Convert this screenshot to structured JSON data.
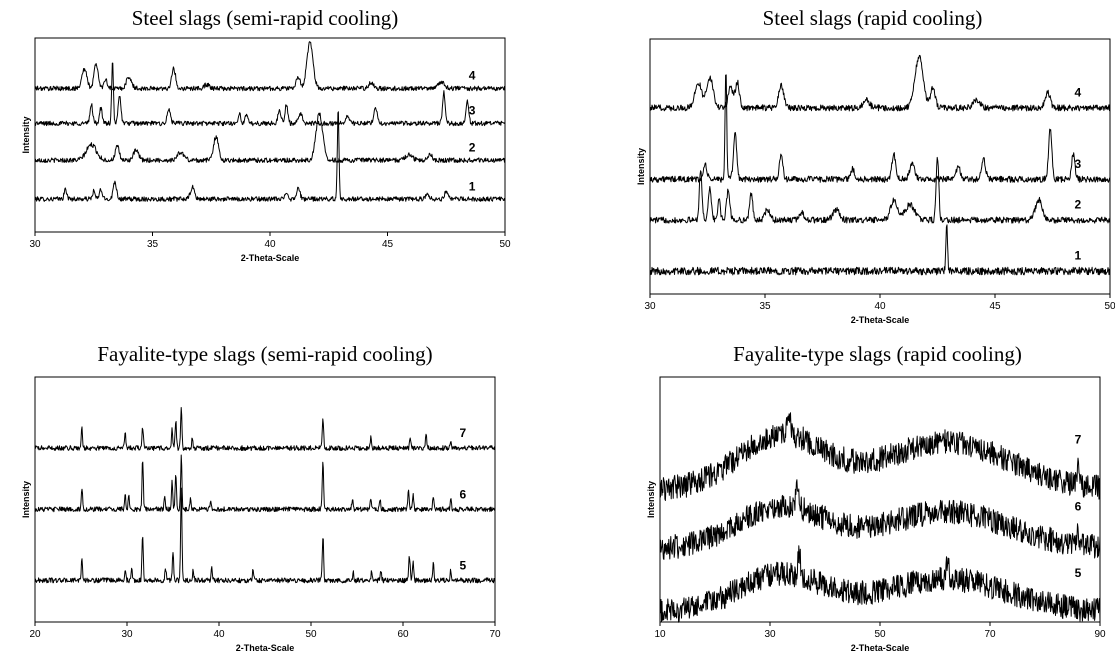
{
  "panels": [
    {
      "title": "Steel slags (semi-rapid cooling)",
      "xlabel": "2-Theta-Scale",
      "ylabel": "Intensity",
      "xlim": [
        30,
        50
      ],
      "xticks": [
        "30",
        "35",
        "40",
        "45",
        "50"
      ]
    },
    {
      "title": "Steel slags (rapid cooling)",
      "xlabel": "2-Theta-Scale",
      "ylabel": "Intensity",
      "xlim": [
        30,
        50
      ],
      "xticks": [
        "30",
        "35",
        "40",
        "45",
        "50"
      ]
    },
    {
      "title": "Fayalite-type slags (semi-rapid cooling)",
      "xlabel": "2-Theta-Scale",
      "ylabel": "Intensity",
      "xlim": [
        20,
        70
      ],
      "xticks": [
        "20",
        "30",
        "40",
        "50",
        "60",
        "70"
      ]
    },
    {
      "title": "Fayalite-type slags (rapid cooling)",
      "xlabel": "2-Theta-Scale",
      "ylabel": "Intensity",
      "xlim": [
        10,
        90
      ],
      "xticks": [
        "10",
        "30",
        "50",
        "70",
        "90"
      ]
    }
  ],
  "chart_data": [
    {
      "type": "line",
      "title": "Steel slags (semi-rapid cooling)",
      "xlabel": "2-Theta-Scale",
      "ylabel": "Intensity",
      "xlim": [
        30,
        50
      ],
      "ylim": [
        0,
        1
      ],
      "grid": false,
      "legend": "none",
      "series": [
        {
          "name": "1",
          "baseline": 0.17,
          "amplitude": 0.0,
          "noise": 0.012,
          "peaks": [
            [
              31.3,
              0.05,
              0.08
            ],
            [
              32.5,
              0.04,
              0.08
            ],
            [
              32.8,
              0.05,
              0.08
            ],
            [
              33.4,
              0.09,
              0.1
            ],
            [
              36.7,
              0.06,
              0.12
            ],
            [
              40.7,
              0.04,
              0.08
            ],
            [
              41.2,
              0.06,
              0.1
            ],
            [
              42.9,
              0.46,
              0.05
            ],
            [
              46.7,
              0.03,
              0.1
            ],
            [
              47.5,
              0.04,
              0.1
            ]
          ]
        },
        {
          "name": "2",
          "baseline": 0.37,
          "amplitude": 0.0,
          "noise": 0.012,
          "peaks": [
            [
              32.4,
              0.08,
              0.3
            ],
            [
              33.5,
              0.07,
              0.12
            ],
            [
              34.3,
              0.05,
              0.15
            ],
            [
              36.2,
              0.04,
              0.2
            ],
            [
              37.7,
              0.12,
              0.15
            ],
            [
              42.1,
              0.24,
              0.2
            ],
            [
              45.9,
              0.03,
              0.2
            ],
            [
              46.8,
              0.03,
              0.15
            ]
          ]
        },
        {
          "name": "3",
          "baseline": 0.56,
          "amplitude": 0.0,
          "noise": 0.012,
          "peaks": [
            [
              32.4,
              0.1,
              0.08
            ],
            [
              32.8,
              0.08,
              0.08
            ],
            [
              33.3,
              0.32,
              0.05
            ],
            [
              33.6,
              0.15,
              0.08
            ],
            [
              35.7,
              0.07,
              0.1
            ],
            [
              38.7,
              0.05,
              0.08
            ],
            [
              39.0,
              0.04,
              0.08
            ],
            [
              40.4,
              0.06,
              0.1
            ],
            [
              40.7,
              0.1,
              0.08
            ],
            [
              41.3,
              0.05,
              0.12
            ],
            [
              43.3,
              0.04,
              0.1
            ],
            [
              44.5,
              0.08,
              0.1
            ],
            [
              47.4,
              0.16,
              0.08
            ],
            [
              48.4,
              0.12,
              0.08
            ]
          ]
        },
        {
          "name": "4",
          "baseline": 0.74,
          "amplitude": 0.0,
          "noise": 0.012,
          "peaks": [
            [
              32.1,
              0.1,
              0.15
            ],
            [
              32.6,
              0.13,
              0.12
            ],
            [
              33.0,
              0.05,
              0.1
            ],
            [
              34.0,
              0.06,
              0.15
            ],
            [
              35.9,
              0.1,
              0.12
            ],
            [
              37.3,
              0.02,
              0.15
            ],
            [
              41.2,
              0.06,
              0.12
            ],
            [
              41.7,
              0.24,
              0.18
            ],
            [
              44.3,
              0.03,
              0.15
            ],
            [
              47.3,
              0.03,
              0.2
            ]
          ]
        }
      ]
    },
    {
      "type": "line",
      "title": "Steel slags (rapid cooling)",
      "xlabel": "2-Theta-Scale",
      "ylabel": "Intensity",
      "xlim": [
        30,
        50
      ],
      "ylim": [
        0,
        1
      ],
      "grid": false,
      "legend": "none",
      "series": [
        {
          "name": "1",
          "baseline": 0.09,
          "amplitude": 0.0,
          "noise": 0.015,
          "peaks": [
            [
              42.9,
              0.18,
              0.05
            ]
          ]
        },
        {
          "name": "2",
          "baseline": 0.29,
          "amplitude": 0.0,
          "noise": 0.012,
          "peaks": [
            [
              32.2,
              0.2,
              0.08
            ],
            [
              32.6,
              0.12,
              0.1
            ],
            [
              33.0,
              0.08,
              0.08
            ],
            [
              33.4,
              0.12,
              0.1
            ],
            [
              34.4,
              0.1,
              0.1
            ],
            [
              35.1,
              0.04,
              0.15
            ],
            [
              36.6,
              0.03,
              0.15
            ],
            [
              38.1,
              0.04,
              0.2
            ],
            [
              40.6,
              0.08,
              0.2
            ],
            [
              41.3,
              0.06,
              0.3
            ],
            [
              42.5,
              0.24,
              0.08
            ],
            [
              46.9,
              0.08,
              0.2
            ]
          ]
        },
        {
          "name": "3",
          "baseline": 0.45,
          "amplitude": 0.0,
          "noise": 0.012,
          "peaks": [
            [
              32.4,
              0.06,
              0.1
            ],
            [
              33.3,
              0.43,
              0.05
            ],
            [
              33.7,
              0.18,
              0.1
            ],
            [
              35.7,
              0.1,
              0.1
            ],
            [
              38.8,
              0.04,
              0.12
            ],
            [
              40.6,
              0.1,
              0.12
            ],
            [
              41.4,
              0.06,
              0.15
            ],
            [
              43.4,
              0.05,
              0.12
            ],
            [
              44.5,
              0.08,
              0.12
            ],
            [
              47.4,
              0.2,
              0.1
            ],
            [
              48.4,
              0.1,
              0.1
            ]
          ]
        },
        {
          "name": "4",
          "baseline": 0.73,
          "amplitude": 0.0,
          "noise": 0.012,
          "peaks": [
            [
              32.1,
              0.1,
              0.2
            ],
            [
              32.6,
              0.12,
              0.2
            ],
            [
              33.5,
              0.08,
              0.15
            ],
            [
              33.8,
              0.1,
              0.12
            ],
            [
              35.7,
              0.09,
              0.15
            ],
            [
              39.4,
              0.03,
              0.2
            ],
            [
              41.7,
              0.2,
              0.25
            ],
            [
              42.3,
              0.08,
              0.15
            ],
            [
              44.2,
              0.03,
              0.2
            ],
            [
              47.3,
              0.06,
              0.15
            ]
          ]
        }
      ]
    },
    {
      "type": "line",
      "title": "Fayalite-type slags (semi-rapid cooling)",
      "xlabel": "2-Theta-Scale",
      "ylabel": "Intensity",
      "xlim": [
        20,
        70
      ],
      "ylim": [
        0,
        1
      ],
      "grid": false,
      "legend": "none",
      "series": [
        {
          "name": "5",
          "baseline": 0.17,
          "amplitude": 0.0,
          "noise": 0.01,
          "peaks": [
            [
              25.1,
              0.09,
              0.1
            ],
            [
              29.8,
              0.04,
              0.1
            ],
            [
              30.5,
              0.05,
              0.1
            ],
            [
              31.7,
              0.19,
              0.1
            ],
            [
              34.2,
              0.05,
              0.1
            ],
            [
              35.0,
              0.12,
              0.1
            ],
            [
              35.9,
              0.38,
              0.1
            ],
            [
              37.2,
              0.04,
              0.1
            ],
            [
              39.2,
              0.05,
              0.1
            ],
            [
              43.7,
              0.04,
              0.1
            ],
            [
              51.3,
              0.18,
              0.1
            ],
            [
              54.6,
              0.03,
              0.1
            ],
            [
              56.6,
              0.04,
              0.1
            ],
            [
              57.6,
              0.04,
              0.1
            ],
            [
              60.7,
              0.1,
              0.1
            ],
            [
              61.1,
              0.07,
              0.1
            ],
            [
              63.3,
              0.07,
              0.1
            ],
            [
              65.2,
              0.04,
              0.1
            ]
          ]
        },
        {
          "name": "6",
          "baseline": 0.46,
          "amplitude": 0.0,
          "noise": 0.01,
          "peaks": [
            [
              25.1,
              0.09,
              0.1
            ],
            [
              29.8,
              0.06,
              0.1
            ],
            [
              30.2,
              0.05,
              0.1
            ],
            [
              31.7,
              0.2,
              0.1
            ],
            [
              34.1,
              0.05,
              0.1
            ],
            [
              34.9,
              0.11,
              0.1
            ],
            [
              35.3,
              0.14,
              0.1
            ],
            [
              35.9,
              0.22,
              0.1
            ],
            [
              36.9,
              0.05,
              0.1
            ],
            [
              39.1,
              0.04,
              0.1
            ],
            [
              51.3,
              0.2,
              0.1
            ],
            [
              54.5,
              0.04,
              0.1
            ],
            [
              56.5,
              0.05,
              0.1
            ],
            [
              57.5,
              0.04,
              0.1
            ],
            [
              60.6,
              0.08,
              0.1
            ],
            [
              61.1,
              0.06,
              0.1
            ],
            [
              63.3,
              0.05,
              0.1
            ],
            [
              65.2,
              0.04,
              0.1
            ]
          ]
        },
        {
          "name": "7",
          "baseline": 0.71,
          "amplitude": 0.0,
          "noise": 0.01,
          "peaks": [
            [
              25.1,
              0.08,
              0.1
            ],
            [
              29.8,
              0.06,
              0.1
            ],
            [
              31.7,
              0.09,
              0.1
            ],
            [
              34.9,
              0.08,
              0.1
            ],
            [
              35.3,
              0.11,
              0.1
            ],
            [
              35.9,
              0.16,
              0.1
            ],
            [
              37.1,
              0.04,
              0.1
            ],
            [
              51.3,
              0.12,
              0.1
            ],
            [
              56.5,
              0.04,
              0.1
            ],
            [
              60.8,
              0.04,
              0.1
            ],
            [
              62.5,
              0.06,
              0.1
            ],
            [
              65.2,
              0.03,
              0.1
            ]
          ]
        }
      ]
    },
    {
      "type": "line",
      "title": "Fayalite-type slags (rapid cooling)",
      "xlabel": "2-Theta-Scale",
      "ylabel": "Intensity",
      "xlim": [
        10,
        90
      ],
      "ylim": [
        0,
        1
      ],
      "grid": false,
      "legend": "none",
      "series": [
        {
          "name": "5",
          "baseline": 0.04,
          "amplitude": 0.18,
          "noise": 0.05,
          "peaks": [
            [
              35.3,
              0.1,
              0.3
            ],
            [
              62.3,
              0.06,
              0.4
            ]
          ]
        },
        {
          "name": "6",
          "baseline": 0.3,
          "amplitude": 0.2,
          "noise": 0.05,
          "peaks": [
            [
              35.0,
              0.08,
              0.4
            ],
            [
              86.0,
              0.06,
              0.2
            ]
          ]
        },
        {
          "name": "7",
          "baseline": 0.54,
          "amplitude": 0.26,
          "noise": 0.05,
          "peaks": [
            [
              33.5,
              0.06,
              0.5
            ],
            [
              86.0,
              0.08,
              0.2
            ]
          ]
        }
      ]
    }
  ]
}
